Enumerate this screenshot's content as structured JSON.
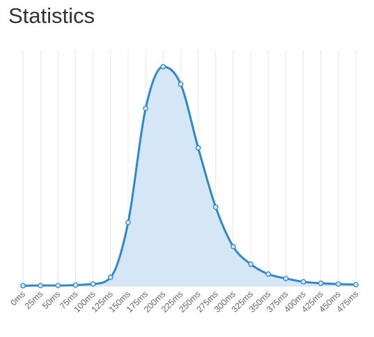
{
  "page": {
    "title": "Statistics"
  },
  "chart_data": {
    "type": "area",
    "title": "",
    "xlabel": "",
    "ylabel": "",
    "categories": [
      "0ms",
      "25ms",
      "50ms",
      "75ms",
      "100ms",
      "125ms",
      "150ms",
      "175ms",
      "200ms",
      "225ms",
      "250ms",
      "275ms",
      "300ms",
      "325ms",
      "350ms",
      "375ms",
      "400ms",
      "425ms",
      "450ms",
      "475ms"
    ],
    "series": [
      {
        "values": [
          0.2,
          0.3,
          0.3,
          0.5,
          1.0,
          4.0,
          29.0,
          81.0,
          100.0,
          92.0,
          63.0,
          36.0,
          18.0,
          10.0,
          5.5,
          3.5,
          2.0,
          1.3,
          1.0,
          0.7
        ]
      }
    ],
    "ylim": [
      0,
      105
    ],
    "y_axis_visible": false,
    "grid": {
      "vertical": true,
      "horizontal": false
    },
    "curve": "smooth",
    "colors": {
      "line": "#2f86cc",
      "area": "#d5e7f7",
      "grid": "#e6e6e6"
    }
  }
}
